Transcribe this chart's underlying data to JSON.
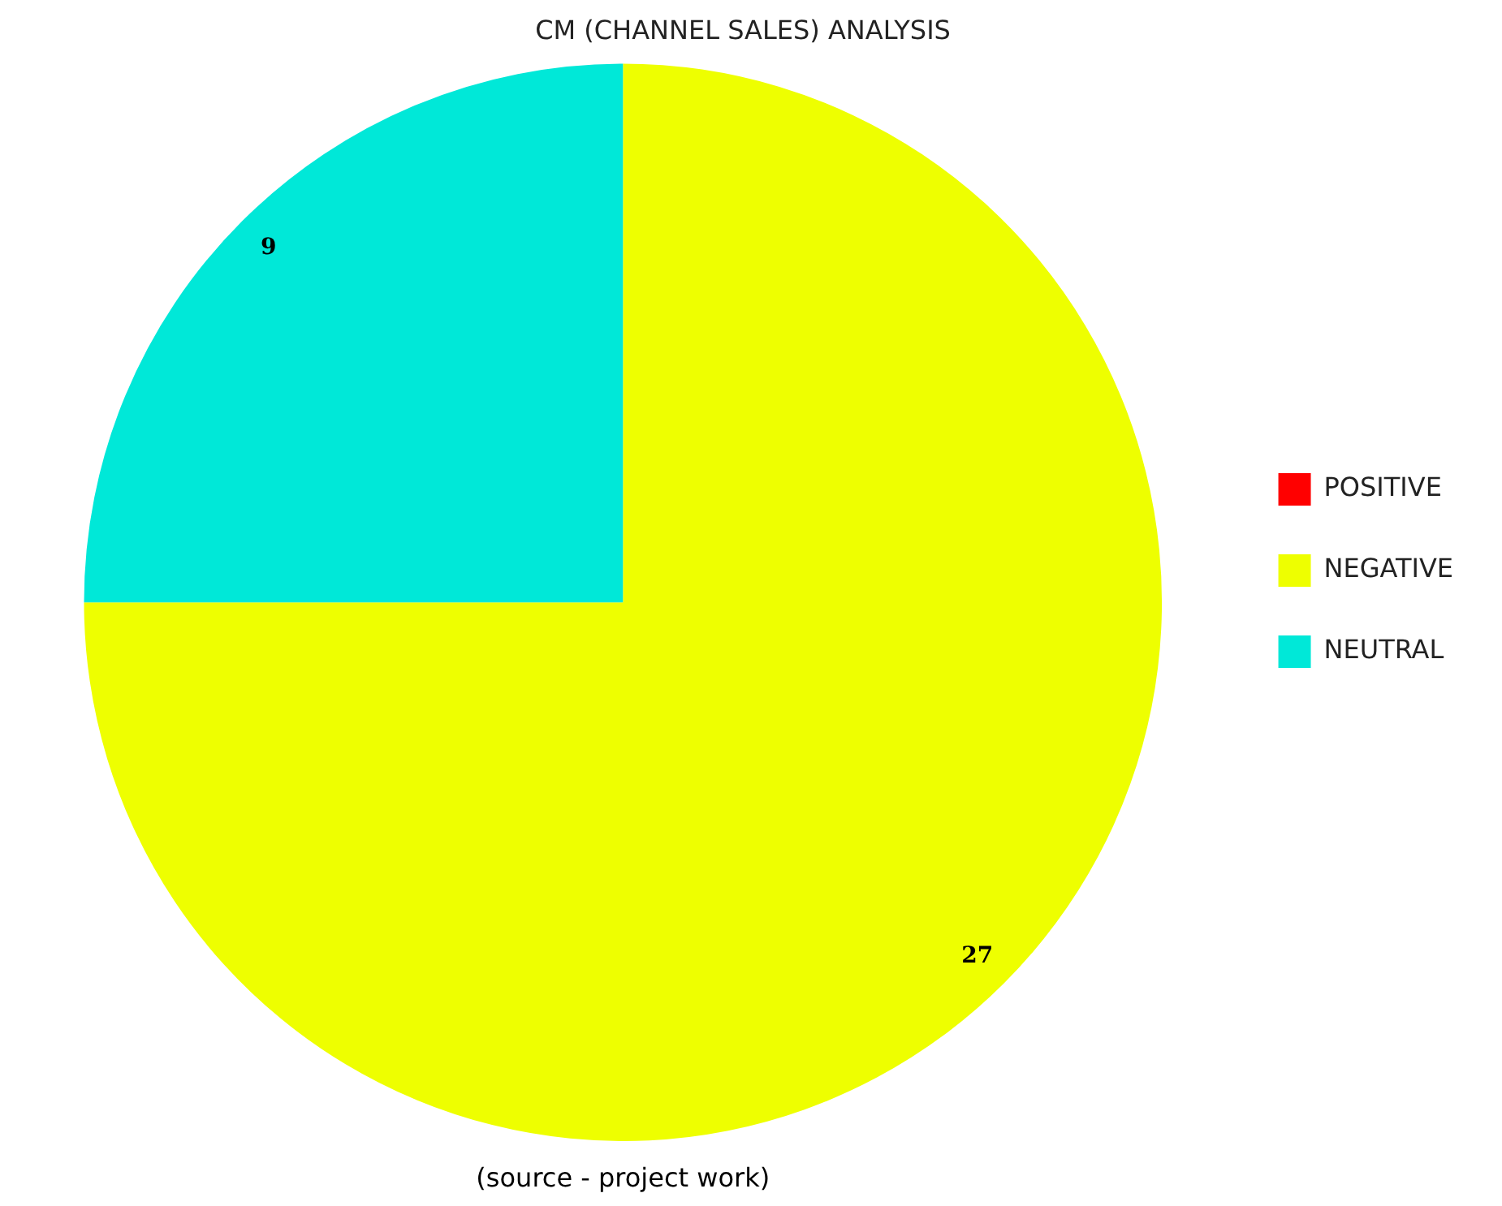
{
  "chart_data": {
    "type": "pie",
    "title": "CM (CHANNEL SALES) ANALYSIS",
    "categories": [
      "POSITIVE",
      "NEGATIVE",
      "NEUTRAL"
    ],
    "values": [
      0,
      27,
      9
    ],
    "colors": [
      "#ff0000",
      "#eeff00",
      "#00e8d8"
    ],
    "value_labels": [
      null,
      "27",
      "9"
    ],
    "legend": "right",
    "annotations": [
      "(source - project work)"
    ]
  }
}
